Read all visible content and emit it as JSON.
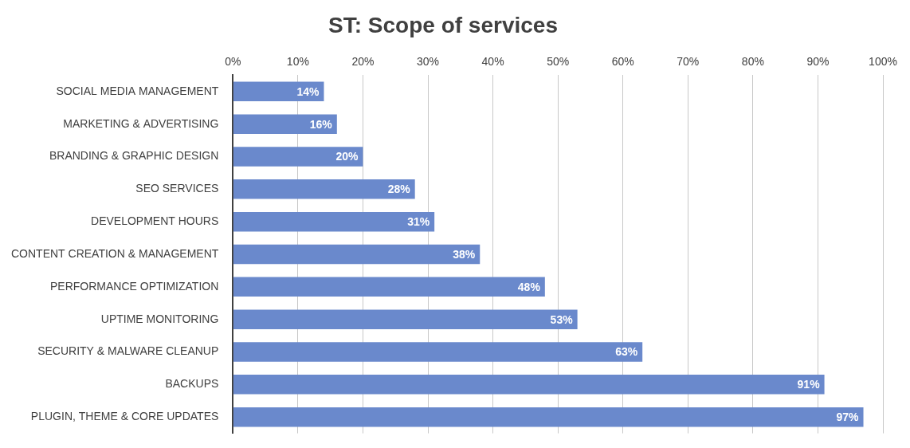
{
  "chart_data": {
    "type": "bar",
    "title": "ST: Scope of services",
    "orientation": "horizontal",
    "categories": [
      "SOCIAL MEDIA MANAGEMENT",
      "MARKETING & ADVERTISING",
      "BRANDING & GRAPHIC DESIGN",
      "SEO SERVICES",
      "DEVELOPMENT HOURS",
      "CONTENT CREATION & MANAGEMENT",
      "PERFORMANCE OPTIMIZATION",
      "UPTIME MONITORING",
      "SECURITY & MALWARE CLEANUP",
      "BACKUPS",
      "PLUGIN, THEME & CORE UPDATES"
    ],
    "values": [
      14,
      16,
      20,
      28,
      31,
      38,
      48,
      53,
      63,
      91,
      97
    ],
    "value_labels": [
      "14%",
      "16%",
      "20%",
      "28%",
      "31%",
      "38%",
      "48%",
      "53%",
      "63%",
      "91%",
      "97%"
    ],
    "color": "#6a89cc",
    "xlim": [
      0,
      100
    ],
    "xticks": [
      {
        "value": 0,
        "label": "0%"
      },
      {
        "value": 10,
        "label": "10%"
      },
      {
        "value": 20,
        "label": "20%"
      },
      {
        "value": 30,
        "label": "30%"
      },
      {
        "value": 40,
        "label": "40%"
      },
      {
        "value": 50,
        "label": "50%"
      },
      {
        "value": 60,
        "label": "60%"
      },
      {
        "value": 70,
        "label": "70%"
      },
      {
        "value": 80,
        "label": "80%"
      },
      {
        "value": 90,
        "label": "90%"
      },
      {
        "value": 100,
        "label": "100%"
      }
    ],
    "grid": true,
    "data_labels": true
  }
}
